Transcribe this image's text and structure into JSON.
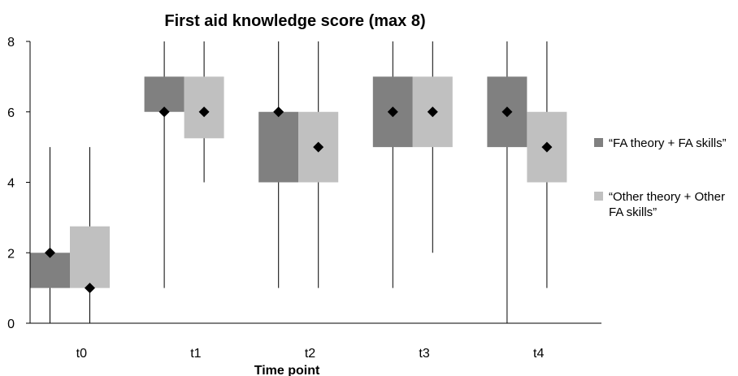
{
  "chart_data": {
    "type": "boxplot",
    "title": "First aid knowledge score (max 8)",
    "xlabel": "Time point",
    "ylabel": "",
    "ylim": [
      0,
      8
    ],
    "yticks": [
      0,
      2,
      4,
      6,
      8
    ],
    "categories": [
      "t0",
      "t1",
      "t2",
      "t3",
      "t4"
    ],
    "grid": false,
    "legend_position": "right",
    "series": [
      {
        "name": "“FA theory + FA skills”",
        "color": "#808080",
        "boxes": [
          {
            "min": 0,
            "q1": 1,
            "q3": 2,
            "max": 5,
            "median": 2
          },
          {
            "min": 1,
            "q1": 6,
            "q3": 7,
            "max": 8,
            "median": 6
          },
          {
            "min": 1,
            "q1": 4,
            "q3": 6,
            "max": 8,
            "median": 6
          },
          {
            "min": 1,
            "q1": 5,
            "q3": 7,
            "max": 8,
            "median": 6
          },
          {
            "min": 0,
            "q1": 5,
            "q3": 7,
            "max": 8,
            "median": 6
          }
        ]
      },
      {
        "name": "“Other theory + Other FA skills”",
        "color": "#c0c0c0",
        "boxes": [
          {
            "min": 0,
            "q1": 1,
            "q3": 2.75,
            "max": 5,
            "median": 1
          },
          {
            "min": 4,
            "q1": 5.25,
            "q3": 7,
            "max": 8,
            "median": 6
          },
          {
            "min": 1,
            "q1": 4,
            "q3": 6,
            "max": 8,
            "median": 5
          },
          {
            "min": 2,
            "q1": 5,
            "q3": 7,
            "max": 8,
            "median": 6
          },
          {
            "min": 1,
            "q1": 4,
            "q3": 6,
            "max": 8,
            "median": 5
          }
        ]
      }
    ]
  }
}
